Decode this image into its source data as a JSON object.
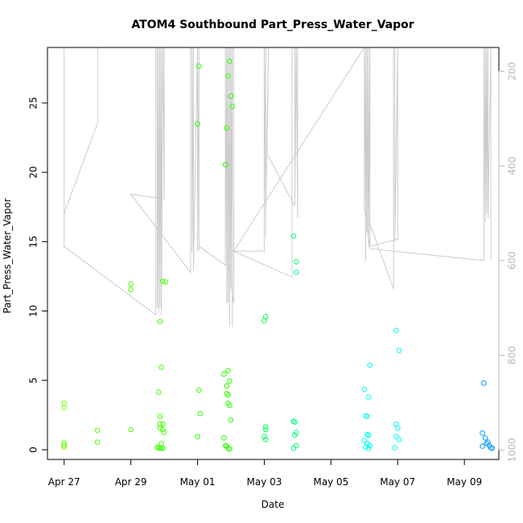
{
  "chart_data": {
    "type": "scatter",
    "title": "ATOM4 Southbound Part_Press_Water_Vapor",
    "xlabel": "Date",
    "ylabel": "Part_Press_Water_Vapor",
    "x_tick_labels": [
      "Apr 27",
      "Apr 29",
      "May 01",
      "May 03",
      "May 05",
      "May 07",
      "May 09"
    ],
    "x_tick_dates": [
      "2015-04-27",
      "2015-04-29",
      "2015-05-01",
      "2015-05-03",
      "2015-05-05",
      "2015-05-07",
      "2015-05-09"
    ],
    "xlim": [
      "2015-04-26T12:00",
      "2015-05-10T00:48"
    ],
    "y_ticks": [
      0,
      5,
      10,
      15,
      20,
      25
    ],
    "ylim": [
      -0.7,
      29.0
    ],
    "y2_ticks": [
      200,
      400,
      600,
      800,
      1000
    ],
    "y2_reversed": true,
    "y2lim": [
      1020,
      150
    ],
    "grid": false,
    "point_color_by_time": true,
    "series": [
      {
        "type": "scatter",
        "points": [
          [
            "2015-04-27T00:00",
            3.35,
            "#66ff00"
          ],
          [
            "2015-04-27T00:00",
            3.05,
            "#66ff00"
          ],
          [
            "2015-04-27T00:00",
            0.5,
            "#66ff00"
          ],
          [
            "2015-04-27T00:00",
            0.35,
            "#66ff00"
          ],
          [
            "2015-04-27T00:00",
            0.2,
            "#66ff00"
          ],
          [
            "2015-04-28T00:00",
            1.4,
            "#5cff00"
          ],
          [
            "2015-04-28T00:00",
            0.55,
            "#5cff00"
          ],
          [
            "2015-04-29T00:00",
            11.95,
            "#4dff00"
          ],
          [
            "2015-04-29T00:00",
            11.55,
            "#4dff00"
          ],
          [
            "2015-04-29T00:00",
            1.45,
            "#4dff00"
          ],
          [
            "2015-04-29T20:00",
            4.15,
            "#40ff00"
          ],
          [
            "2015-04-29T21:00",
            9.25,
            "#40ff00"
          ],
          [
            "2015-04-29T21:00",
            2.4,
            "#40ff00"
          ],
          [
            "2015-04-29T21:00",
            1.85,
            "#40ff00"
          ],
          [
            "2015-04-29T21:00",
            1.55,
            "#40ff00"
          ],
          [
            "2015-04-29T20:00",
            0.2,
            "#40ff00"
          ],
          [
            "2015-04-29T19:00",
            0.15,
            "#40ff00"
          ],
          [
            "2015-04-29T21:00",
            0.1,
            "#40ff00"
          ],
          [
            "2015-04-29T22:00",
            0.12,
            "#40ff00"
          ],
          [
            "2015-04-29T22:00",
            5.95,
            "#40ff00"
          ],
          [
            "2015-04-29T23:00",
            12.15,
            "#40ff00"
          ],
          [
            "2015-04-30T01:00",
            12.1,
            "#40ff00"
          ],
          [
            "2015-04-29T23:00",
            1.85,
            "#40ff00"
          ],
          [
            "2015-04-29T23:00",
            1.45,
            "#40ff00"
          ],
          [
            "2015-04-30T00:00",
            1.25,
            "#40ff00"
          ],
          [
            "2015-04-29T22:00",
            0.45,
            "#40ff00"
          ],
          [
            "2015-04-29T23:00",
            0.1,
            "#40ff00"
          ],
          [
            "2015-05-01T00:00",
            23.5,
            "#33ff00"
          ],
          [
            "2015-05-01T01:00",
            27.65,
            "#33ff00"
          ],
          [
            "2015-05-01T01:00",
            4.3,
            "#33ff00"
          ],
          [
            "2015-05-01T02:00",
            2.6,
            "#33ff00"
          ],
          [
            "2015-05-01T00:00",
            0.95,
            "#33ff00"
          ],
          [
            "2015-05-01T20:00",
            20.55,
            "#2bff00"
          ],
          [
            "2015-05-01T21:00",
            23.2,
            "#2bff00"
          ],
          [
            "2015-05-01T22:00",
            26.95,
            "#2bff00"
          ],
          [
            "2015-05-01T23:00",
            28.0,
            "#2bff00"
          ],
          [
            "2015-05-02T00:00",
            25.5,
            "#2bff00"
          ],
          [
            "2015-05-02T01:00",
            24.75,
            "#2bff00"
          ],
          [
            "2015-05-01T19:00",
            5.45,
            "#2bff00"
          ],
          [
            "2015-05-01T22:00",
            5.7,
            "#2bff00"
          ],
          [
            "2015-05-01T23:00",
            4.95,
            "#2bff00"
          ],
          [
            "2015-05-01T21:00",
            4.6,
            "#2bff00"
          ],
          [
            "2015-05-01T21:00",
            4.05,
            "#2bff00"
          ],
          [
            "2015-05-01T22:00",
            3.95,
            "#2bff00"
          ],
          [
            "2015-05-01T22:00",
            3.35,
            "#2bff00"
          ],
          [
            "2015-05-01T23:00",
            3.2,
            "#2bff00"
          ],
          [
            "2015-05-02T00:00",
            2.15,
            "#2bff00"
          ],
          [
            "2015-05-01T19:00",
            0.85,
            "#2bff00"
          ],
          [
            "2015-05-01T20:00",
            0.3,
            "#2bff00"
          ],
          [
            "2015-05-01T21:00",
            0.25,
            "#2bff00"
          ],
          [
            "2015-05-01T22:00",
            0.1,
            "#2bff00"
          ],
          [
            "2015-05-01T23:00",
            0.05,
            "#2bff00"
          ],
          [
            "2015-05-03T01:00",
            9.6,
            "#00ff5a"
          ],
          [
            "2015-05-03T00:00",
            9.3,
            "#00ff5a"
          ],
          [
            "2015-05-03T01:00",
            1.65,
            "#00ff5a"
          ],
          [
            "2015-05-03T01:00",
            1.45,
            "#00ff5a"
          ],
          [
            "2015-05-03T00:00",
            0.95,
            "#00ff5a"
          ],
          [
            "2015-05-03T01:00",
            0.75,
            "#00ff5a"
          ],
          [
            "2015-05-03T21:00",
            15.4,
            "#00ff7a"
          ],
          [
            "2015-05-03T23:00",
            13.55,
            "#00ff7a"
          ],
          [
            "2015-05-03T23:00",
            12.8,
            "#00ff7a"
          ],
          [
            "2015-05-03T21:00",
            2.05,
            "#00ff7a"
          ],
          [
            "2015-05-03T22:00",
            2.0,
            "#00ff7a"
          ],
          [
            "2015-05-03T23:00",
            1.25,
            "#00ff7a"
          ],
          [
            "2015-05-03T22:00",
            1.05,
            "#00ff7a"
          ],
          [
            "2015-05-03T23:00",
            0.3,
            "#00ff7a"
          ],
          [
            "2015-05-03T21:00",
            0.1,
            "#00ff7a"
          ],
          [
            "2015-05-06T00:00",
            4.35,
            "#00ffee"
          ],
          [
            "2015-05-06T03:00",
            3.8,
            "#00ffee"
          ],
          [
            "2015-05-06T04:00",
            6.1,
            "#00ffee"
          ],
          [
            "2015-05-06T01:00",
            2.45,
            "#00ffee"
          ],
          [
            "2015-05-06T02:00",
            2.4,
            "#00ffee"
          ],
          [
            "2015-05-06T02:00",
            1.1,
            "#00ffee"
          ],
          [
            "2015-05-06T03:00",
            1.05,
            "#00ffee"
          ],
          [
            "2015-05-06T00:00",
            0.65,
            "#00ffee"
          ],
          [
            "2015-05-06T02:00",
            0.45,
            "#00ffee"
          ],
          [
            "2015-05-06T04:00",
            0.3,
            "#00ffee"
          ],
          [
            "2015-05-06T01:00",
            0.2,
            "#00ffee"
          ],
          [
            "2015-05-06T03:00",
            0.1,
            "#00ffee"
          ],
          [
            "2015-05-06T23:00",
            8.6,
            "#00ffff"
          ],
          [
            "2015-05-07T01:00",
            7.15,
            "#00ffff"
          ],
          [
            "2015-05-06T23:00",
            1.85,
            "#00ffff"
          ],
          [
            "2015-05-07T00:00",
            1.55,
            "#00ffff"
          ],
          [
            "2015-05-06T23:00",
            0.95,
            "#00ffff"
          ],
          [
            "2015-05-07T01:00",
            0.75,
            "#00ffff"
          ],
          [
            "2015-05-06T22:00",
            0.15,
            "#00ffff"
          ],
          [
            "2015-05-09T14:00",
            4.8,
            "#0099ff"
          ],
          [
            "2015-05-09T13:00",
            1.2,
            "#0099ff"
          ],
          [
            "2015-05-09T15:00",
            0.85,
            "#0099ff"
          ],
          [
            "2015-05-09T17:00",
            0.55,
            "#0099ff"
          ],
          [
            "2015-05-09T16:00",
            0.45,
            "#0099ff"
          ],
          [
            "2015-05-09T18:00",
            0.3,
            "#0099ff"
          ],
          [
            "2015-05-09T13:00",
            0.25,
            "#0099ff"
          ],
          [
            "2015-05-09T19:00",
            0.15,
            "#0099ff"
          ],
          [
            "2015-05-09T20:00",
            0.1,
            "#0099ff"
          ]
        ]
      },
      {
        "type": "line",
        "axis": "right",
        "color": "#cccccc",
        "path": [
          [
            "2015-04-27T00:00",
            150
          ],
          [
            "2015-04-27T00:00",
            500
          ],
          [
            "2015-04-28T00:00",
            310
          ],
          [
            "2015-04-28T00:00",
            150
          ],
          [
            "2015-04-28T00:00",
            310
          ],
          [
            "2015-04-27T00:00",
            500
          ],
          [
            "2015-04-27T00:00",
            570
          ],
          [
            "2015-04-29T18:00",
            715
          ],
          [
            "2015-04-29T18:00",
            150
          ],
          [
            "2015-04-29T19:00",
            150
          ],
          [
            "2015-04-29T19:00",
            700
          ],
          [
            "2015-04-29T20:00",
            150
          ],
          [
            "2015-04-29T20:00",
            710
          ],
          [
            "2015-04-29T21:00",
            150
          ],
          [
            "2015-04-29T21:00",
            700
          ],
          [
            "2015-04-29T22:00",
            150
          ],
          [
            "2015-04-29T22:00",
            715
          ],
          [
            "2015-04-29T23:00",
            150
          ],
          [
            "2015-04-30T00:00",
            470
          ],
          [
            "2015-04-30T00:00",
            150
          ],
          [
            "2015-04-30T00:00",
            470
          ],
          [
            "2015-04-29T00:00",
            460
          ],
          [
            "2015-04-30T19:00",
            625
          ],
          [
            "2015-04-30T19:00",
            150
          ],
          [
            "2015-04-30T20:00",
            150
          ],
          [
            "2015-04-30T20:00",
            580
          ],
          [
            "2015-04-30T20:00",
            150
          ],
          [
            "2015-04-30T21:00",
            580
          ],
          [
            "2015-04-30T21:00",
            150
          ],
          [
            "2015-04-30T21:00",
            620
          ],
          [
            "2015-05-01T00:00",
            150
          ],
          [
            "2015-05-01T00:00",
            580
          ],
          [
            "2015-05-01T00:00",
            150
          ],
          [
            "2015-05-01T01:00",
            580
          ],
          [
            "2015-05-01T01:00",
            150
          ],
          [
            "2015-05-01T01:00",
            570
          ],
          [
            "2015-05-01T01:00",
            570
          ],
          [
            "2015-05-01T20:00",
            610
          ],
          [
            "2015-05-01T20:00",
            150
          ],
          [
            "2015-05-01T20:00",
            580
          ],
          [
            "2015-05-01T21:00",
            150
          ],
          [
            "2015-05-01T21:00",
            690
          ],
          [
            "2015-05-01T22:00",
            150
          ],
          [
            "2015-05-01T22:00",
            690
          ],
          [
            "2015-05-01T23:00",
            150
          ],
          [
            "2015-05-01T23:00",
            740
          ],
          [
            "2015-05-02T00:00",
            150
          ],
          [
            "2015-05-02T00:00",
            655
          ],
          [
            "2015-05-02T01:00",
            150
          ],
          [
            "2015-05-02T01:00",
            740
          ],
          [
            "2015-05-02T01:00",
            150
          ],
          [
            "2015-05-02T01:00",
            150
          ],
          [
            "2015-05-02T02:00",
            150
          ],
          [
            "2015-05-02T02:00",
            690
          ],
          [
            "2015-05-01T21:00",
            580
          ],
          [
            "2015-05-03T00:00",
            580
          ],
          [
            "2015-05-03T00:00",
            150
          ],
          [
            "2015-05-03T00:00",
            500
          ],
          [
            "2015-05-03T01:00",
            150
          ],
          [
            "2015-05-03T01:00",
            550
          ],
          [
            "2015-05-03T01:00",
            150
          ],
          [
            "2015-05-03T01:00",
            510
          ],
          [
            "2015-05-03T03:00",
            150
          ],
          [
            "2015-05-03T03:00",
            150
          ],
          [
            "2015-05-03T02:00",
            375
          ],
          [
            "2015-05-03T22:00",
            485
          ],
          [
            "2015-05-03T22:00",
            150
          ],
          [
            "2015-05-03T22:00",
            485
          ],
          [
            "2015-05-03T23:00",
            150
          ],
          [
            "2015-05-04T00:00",
            510
          ],
          [
            "2015-05-04T00:00",
            150
          ],
          [
            "2015-05-04T00:00",
            150
          ],
          [
            "2015-05-03T22:00",
            150
          ],
          [
            "2015-05-03T23:00",
            150
          ],
          [
            "2015-05-03T00:00",
            150
          ],
          [
            "2015-05-03T20:00",
            150
          ],
          [
            "2015-05-03T20:00",
            635
          ],
          [
            "2015-05-02T02:00",
            580
          ],
          [
            "2015-05-06T00:00",
            150
          ],
          [
            "2015-05-06T00:00",
            490
          ],
          [
            "2015-05-06T01:00",
            150
          ],
          [
            "2015-05-06T01:00",
            600
          ],
          [
            "2015-05-06T02:00",
            150
          ],
          [
            "2015-05-06T02:00",
            540
          ],
          [
            "2015-05-06T02:00",
            150
          ],
          [
            "2015-05-06T03:00",
            560
          ],
          [
            "2015-05-06T03:00",
            150
          ],
          [
            "2015-05-06T03:00",
            570
          ],
          [
            "2015-05-06T04:00",
            150
          ],
          [
            "2015-05-06T04:00",
            570
          ],
          [
            "2015-05-06T00:00",
            490
          ],
          [
            "2015-05-06T21:00",
            660
          ],
          [
            "2015-05-06T21:00",
            150
          ],
          [
            "2015-05-06T22:00",
            150
          ],
          [
            "2015-05-06T22:00",
            560
          ],
          [
            "2015-05-07T00:00",
            150
          ],
          [
            "2015-05-07T00:00",
            555
          ],
          [
            "2015-05-06T04:00",
            570
          ],
          [
            "2015-05-06T04:00",
            575
          ],
          [
            "2015-05-09T14:00",
            600
          ],
          [
            "2015-05-09T14:00",
            150
          ],
          [
            "2015-05-09T14:00",
            510
          ],
          [
            "2015-05-09T15:00",
            150
          ],
          [
            "2015-05-09T15:00",
            520
          ],
          [
            "2015-05-09T16:00",
            150
          ],
          [
            "2015-05-09T16:00",
            500
          ],
          [
            "2015-05-09T17:00",
            150
          ],
          [
            "2015-05-09T17:00",
            510
          ],
          [
            "2015-05-09T19:00",
            150
          ],
          [
            "2015-05-09T19:00",
            600
          ]
        ]
      }
    ]
  }
}
